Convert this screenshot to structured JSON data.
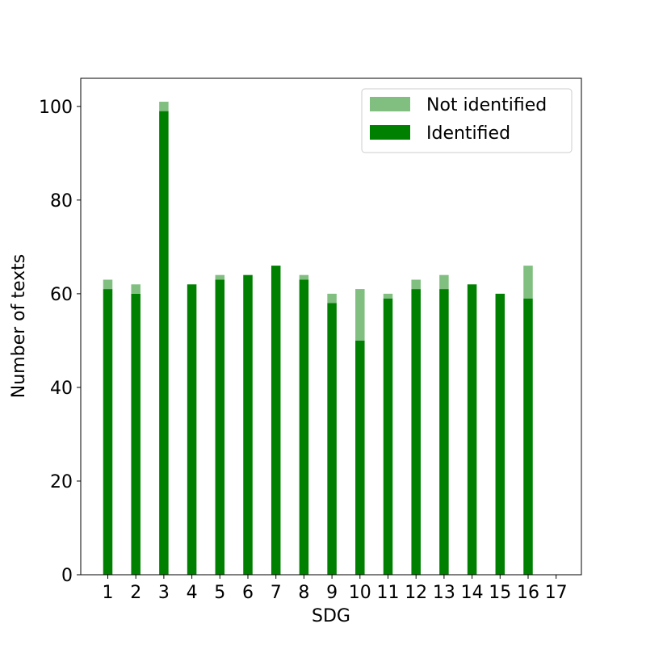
{
  "chart_data": {
    "type": "bar",
    "stacked": true,
    "categories": [
      "1",
      "2",
      "3",
      "4",
      "5",
      "6",
      "7",
      "8",
      "9",
      "10",
      "11",
      "12",
      "13",
      "14",
      "15",
      "16",
      "17"
    ],
    "series": [
      {
        "name": "Identified",
        "color": "#008000",
        "values": [
          61,
          60,
          99,
          62,
          63,
          64,
          66,
          63,
          58,
          50,
          59,
          61,
          61,
          62,
          60,
          59,
          0
        ]
      },
      {
        "name": "Not identified",
        "color": "#80bf80",
        "values": [
          2,
          2,
          2,
          0,
          1,
          0,
          0,
          1,
          2,
          11,
          1,
          2,
          3,
          0,
          0,
          7,
          0
        ]
      }
    ],
    "title": "",
    "xlabel": "SDG",
    "ylabel": "Number of texts",
    "ylim": [
      0,
      106
    ],
    "yticks": [
      0,
      20,
      40,
      60,
      80,
      100
    ],
    "grid": false,
    "legend": {
      "placement": "top-right",
      "entries": [
        "Not identified",
        "Identified"
      ]
    }
  }
}
